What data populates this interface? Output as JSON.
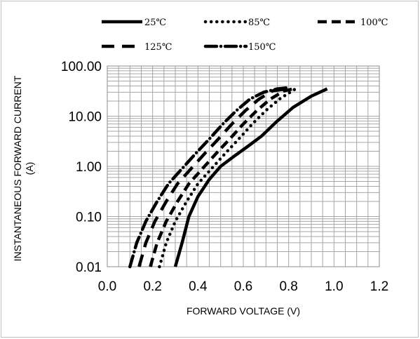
{
  "chart_data": {
    "type": "line",
    "xlabel": "FORWARD VOLTAGE (V)",
    "ylabel_line1": "INSTANTANEOUS FORWARD CURRENT",
    "ylabel_line2": "(A)",
    "xlim": [
      0.0,
      1.2
    ],
    "ylim": [
      0.01,
      100
    ],
    "yscale": "log",
    "grid": true,
    "legend_position": "top",
    "x_tick_labels": [
      "0.0",
      "0.2",
      "0.4",
      "0.6",
      "0.8",
      "1.0",
      "1.2"
    ],
    "x_tick_values": [
      0.0,
      0.2,
      0.4,
      0.6,
      0.8,
      1.0,
      1.2
    ],
    "y_tick_labels": [
      "0.01",
      "0.10",
      "1.00",
      "10.00",
      "100.00"
    ],
    "y_tick_values": [
      0.01,
      0.1,
      1,
      10,
      100
    ],
    "series": [
      {
        "name": "25℃",
        "style": "solid",
        "x": [
          0.3,
          0.33,
          0.36,
          0.4,
          0.45,
          0.5,
          0.56,
          0.62,
          0.68,
          0.75,
          0.82,
          0.9,
          0.97
        ],
        "y": [
          0.01,
          0.03,
          0.1,
          0.25,
          0.55,
          1.0,
          1.6,
          2.5,
          4.0,
          8.0,
          15,
          25,
          35
        ]
      },
      {
        "name": "85℃",
        "style": "dotted",
        "x": [
          0.23,
          0.26,
          0.3,
          0.35,
          0.4,
          0.46,
          0.52,
          0.58,
          0.64,
          0.7,
          0.76,
          0.83
        ],
        "y": [
          0.01,
          0.03,
          0.08,
          0.2,
          0.45,
          0.9,
          1.8,
          3.5,
          7.0,
          13,
          22,
          35
        ]
      },
      {
        "name": "100℃",
        "style": "dashed",
        "x": [
          0.19,
          0.22,
          0.26,
          0.31,
          0.36,
          0.42,
          0.48,
          0.54,
          0.6,
          0.66,
          0.72,
          0.78,
          0.82
        ],
        "y": [
          0.01,
          0.03,
          0.08,
          0.2,
          0.45,
          0.9,
          1.8,
          3.5,
          7.0,
          13,
          22,
          32,
          35
        ]
      },
      {
        "name": "125℃",
        "style": "long-dash",
        "x": [
          0.14,
          0.17,
          0.21,
          0.26,
          0.31,
          0.37,
          0.43,
          0.49,
          0.55,
          0.61,
          0.67,
          0.73,
          0.79
        ],
        "y": [
          0.01,
          0.03,
          0.08,
          0.2,
          0.45,
          0.9,
          1.8,
          3.5,
          7.0,
          13,
          22,
          32,
          35
        ]
      },
      {
        "name": "150℃",
        "style": "dash-dot",
        "x": [
          0.1,
          0.13,
          0.17,
          0.22,
          0.27,
          0.33,
          0.39,
          0.45,
          0.51,
          0.57,
          0.63,
          0.69,
          0.75,
          0.8
        ],
        "y": [
          0.01,
          0.03,
          0.08,
          0.2,
          0.45,
          0.9,
          1.8,
          3.5,
          7.0,
          13,
          22,
          30,
          35,
          37
        ]
      }
    ]
  },
  "colors": {
    "line": "#000000",
    "grid": "#a6a6a6",
    "frame": "#bfbfbf"
  }
}
